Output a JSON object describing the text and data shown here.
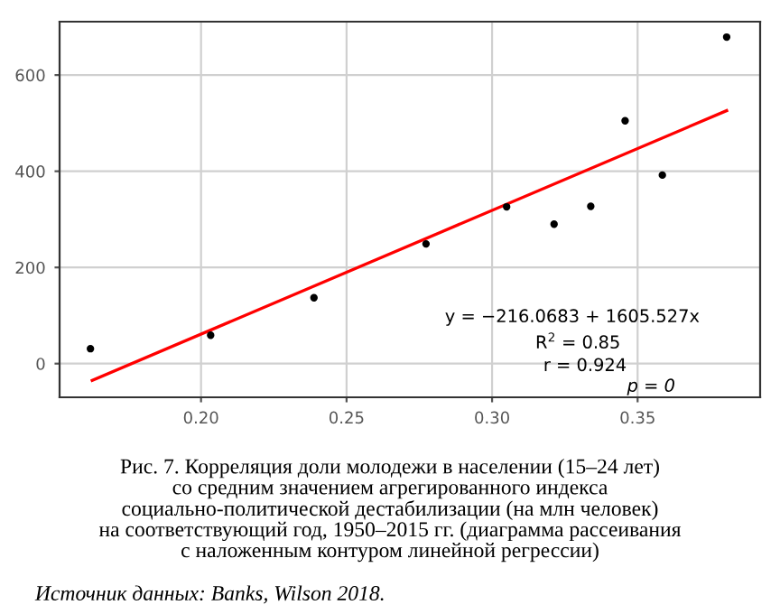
{
  "chart_data": {
    "type": "scatter",
    "title": "Рис. 7. Корреляция доли молодежи в населении (15–24 лет)\nсо средним значением агрегированного индекса\nсоциально-политической дестабилизации (на млн человек)\nна соответствующий год, 1950–2015 гг. (диаграмма рассеивания\nс наложенным контуром линейной регрессии)",
    "annotations": [
      "y = −216.0683 + 1605.527x",
      "R$^{2}$ = 0.85",
      "r = 0.924",
      "p = 0",
      "Источник данных: Banks, Wilson 2018."
    ],
    "series": [
      {
        "color": "#000000",
        "marker": "circle",
        "x": [
          0.162,
          0.2033,
          0.2388,
          0.2773,
          0.305,
          0.3213,
          0.3339,
          0.3457,
          0.3585,
          0.3806
        ],
        "values": [
          31,
          59,
          137,
          249,
          326,
          290,
          327,
          505,
          392,
          679
        ]
      },
      {
        "type": "line",
        "color": "#ff0000",
        "x": [
          0.1626,
          0.3806
        ],
        "values": [
          -35,
          526
        ]
      }
    ],
    "xlim": [
      0.1514,
      0.3921
    ],
    "ylim": [
      -70,
      711
    ],
    "xticks": [
      {
        "value": 0.2,
        "label": "0.20"
      },
      0.25,
      {
        "value": 0.3,
        "label": "0.30"
      },
      0.35
    ],
    "yticks": [
      0,
      200,
      400,
      600
    ],
    "grid": true
  }
}
